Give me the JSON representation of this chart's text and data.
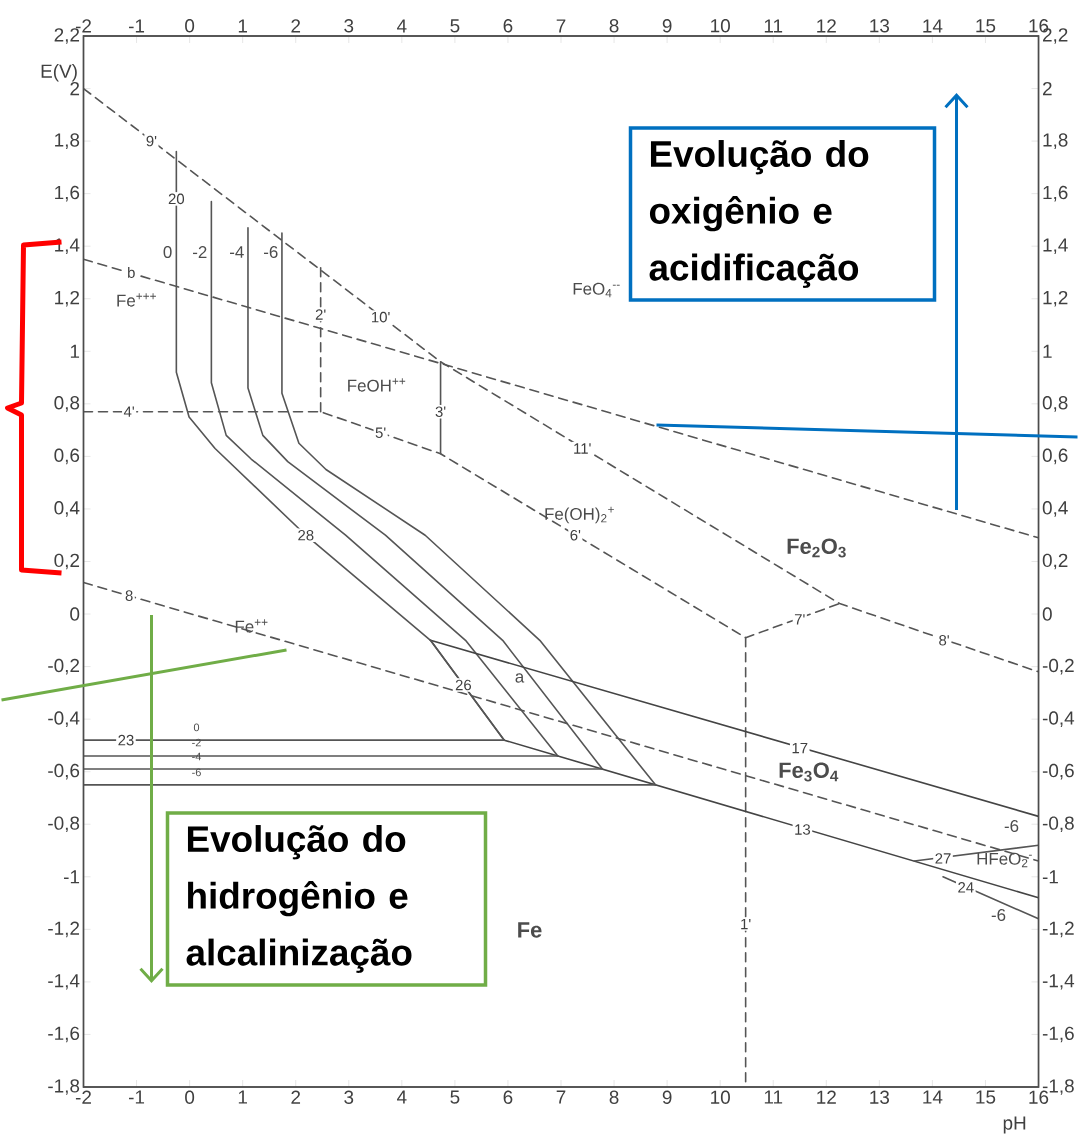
{
  "chart_data": {
    "type": "line",
    "xlabel": "pH",
    "ylabel": "E(V)",
    "xlim": [
      -2,
      16
    ],
    "ylim": [
      -1.8,
      2.2
    ],
    "x2lim": [
      -2,
      16
    ],
    "y2lim": [
      -1.8,
      2.2
    ],
    "xticks": [
      -2,
      -1,
      0,
      1,
      2,
      3,
      4,
      5,
      6,
      7,
      8,
      9,
      10,
      11,
      12,
      13,
      14,
      15,
      16
    ],
    "x2ticks": [
      -2,
      -1,
      0,
      1,
      2,
      3,
      4,
      5,
      6,
      7,
      8,
      9,
      10,
      11,
      12,
      13,
      14,
      15,
      16
    ],
    "yticks": [
      {
        "value": -1.8,
        "label": "-1,8"
      },
      {
        "value": -1.6,
        "label": "-1,6"
      },
      {
        "value": -1.4,
        "label": "-1,4"
      },
      {
        "value": -1.2,
        "label": "-1,2"
      },
      -1,
      {
        "value": -0.8,
        "label": "-0,8"
      },
      {
        "value": -0.6,
        "label": "-0,6"
      },
      {
        "value": -0.4,
        "label": "-0,4"
      },
      {
        "value": -0.2,
        "label": "-0,2"
      },
      0,
      {
        "value": 0.2,
        "label": "0,2"
      },
      {
        "value": 0.4,
        "label": "0,4"
      },
      {
        "value": 0.6,
        "label": "0,6"
      },
      {
        "value": 0.8,
        "label": "0,8"
      },
      1,
      {
        "value": 1.2,
        "label": "1,2"
      },
      {
        "value": 1.4,
        "label": "1,4"
      },
      {
        "value": 1.6,
        "label": "1,6"
      },
      {
        "value": 1.8,
        "label": "1,8"
      },
      2,
      {
        "value": 2.2,
        "label": "2,2"
      }
    ],
    "y2ticks": [
      {
        "value": -1.8,
        "label": "-1,8"
      },
      {
        "value": -1.6,
        "label": "-1,6"
      },
      {
        "value": -1.4,
        "label": "-1,4"
      },
      {
        "value": -1.2,
        "label": "-1,2"
      },
      -1,
      {
        "value": -0.8,
        "label": "-0,8"
      },
      {
        "value": -0.6,
        "label": "-0,6"
      },
      {
        "value": -0.4,
        "label": "-0,4"
      },
      {
        "value": -0.2,
        "label": "-0,2"
      },
      0,
      {
        "value": 0.2,
        "label": "0,2"
      },
      {
        "value": 0.4,
        "label": "0,4"
      },
      {
        "value": 0.6,
        "label": "0,6"
      },
      {
        "value": 0.8,
        "label": "0,8"
      },
      1,
      {
        "value": 1.2,
        "label": "1,2"
      },
      {
        "value": 1.4,
        "label": "1,4"
      },
      {
        "value": 1.6,
        "label": "1,6"
      },
      {
        "value": 1.8,
        "label": "1,8"
      },
      2,
      {
        "value": 2.2,
        "label": "2,2"
      }
    ],
    "series": [
      {
        "color": "#555555",
        "line_style": "dashed",
        "x": [
          -2,
          16
        ],
        "values": [
          1.35,
          0.29
        ]
      },
      {
        "color": "#555555",
        "line_style": "dashed",
        "x": [
          -2,
          16
        ],
        "values": [
          0.12,
          -0.94
        ]
      },
      {
        "color": "#555555",
        "line_style": "dashed",
        "x": [
          -2,
          4.73,
          12.25,
          16
        ],
        "values": [
          2.0,
          0.96,
          0.04,
          -0.22
        ]
      },
      {
        "color": "#555555",
        "line_style": "dashed",
        "x": [
          -2,
          2.47,
          4.73,
          10.48,
          12.25
        ],
        "values": [
          0.77,
          0.77,
          0.61,
          -0.09,
          0.04
        ]
      },
      {
        "color": "#555555",
        "line_style": "dashed",
        "x": [
          10.48,
          10.48
        ],
        "values": [
          -0.09,
          -1.8
        ]
      },
      {
        "color": "#555555",
        "line_style": "dashed",
        "x": [
          2.47,
          2.47
        ],
        "values": [
          0.77,
          1.32
        ]
      },
      {
        "color": "#555555",
        "line_style": "solid",
        "x": [
          4.73,
          4.73
        ],
        "values": [
          0.61,
          0.96
        ]
      },
      {
        "color": "#555555",
        "line_style": "solid",
        "x": [
          -0.25,
          -0.25,
          -0.01,
          0.48,
          2.19,
          4.54,
          5.93
        ],
        "values": [
          1.76,
          0.92,
          0.75,
          0.63,
          0.3,
          -0.1,
          -0.48
        ]
      },
      {
        "color": "#555555",
        "line_style": "solid",
        "x": [
          0.41,
          0.41,
          0.69,
          1.16,
          2.94,
          5.2,
          6.94
        ],
        "values": [
          1.57,
          0.88,
          0.68,
          0.59,
          0.3,
          -0.1,
          -0.54
        ]
      },
      {
        "color": "#555555",
        "line_style": "solid",
        "x": [
          1.1,
          1.1,
          1.38,
          1.85,
          3.69,
          5.9,
          7.78
        ],
        "values": [
          1.47,
          0.86,
          0.68,
          0.58,
          0.3,
          -0.1,
          -0.59
        ]
      },
      {
        "color": "#555555",
        "line_style": "solid",
        "x": [
          1.74,
          1.74,
          2.06,
          2.57,
          4.44,
          6.6,
          8.78
        ],
        "values": [
          1.45,
          0.84,
          0.65,
          0.55,
          0.3,
          -0.1,
          -0.65
        ]
      },
      {
        "color": "#444444",
        "line_style": "solid",
        "x": [
          4.54,
          16
        ],
        "values": [
          -0.1,
          -0.77
        ]
      },
      {
        "color": "#444444",
        "line_style": "solid",
        "x": [
          5.93,
          16
        ],
        "values": [
          -0.48,
          -1.08
        ]
      },
      {
        "color": "#555555",
        "line_style": "solid",
        "x": [
          4.54,
          5.93
        ],
        "values": [
          -0.1,
          -0.48
        ]
      },
      {
        "color": "#555555",
        "line_style": "solid",
        "x": [
          -2,
          5.93
        ],
        "values": [
          -0.48,
          -0.48
        ]
      },
      {
        "color": "#555555",
        "line_style": "solid",
        "x": [
          -2,
          6.94
        ],
        "values": [
          -0.54,
          -0.54
        ]
      },
      {
        "color": "#555555",
        "line_style": "solid",
        "x": [
          -2,
          7.78
        ],
        "values": [
          -0.59,
          -0.59
        ]
      },
      {
        "color": "#555555",
        "line_style": "solid",
        "x": [
          -2,
          8.78
        ],
        "values": [
          -0.65,
          -0.65
        ]
      },
      {
        "color": "#555555",
        "line_style": "solid",
        "x": [
          13.66,
          16
        ],
        "values": [
          -0.94,
          -0.88
        ]
      },
      {
        "color": "#555555",
        "line_style": "solid",
        "x": [
          14.2,
          16
        ],
        "values": [
          -1.0,
          -1.16
        ]
      }
    ],
    "annotations": [
      "Evolução do oxigênio e acidificação",
      "Evolução do hidrogênio e alcalinização",
      "Fe$^{+++}$",
      "0",
      "-2",
      "-4",
      "-6",
      "FeOH$^{++}$",
      "Fe(OH)$_{2}$$^{+}$",
      "Fe$_{2}$O$_{3}$",
      "FeO$_{4}$$^{--}$",
      "Fe$^{++}$",
      "0",
      "-2",
      "-4",
      "-6",
      "Fe$_{3}$O$_{4}$",
      "a",
      "-6",
      "HFeO$_{2}$$^{-}$",
      "-6",
      "Fe",
      {
        "text": "9'",
        "x": -0.72,
        "y": 1.8
      },
      {
        "text": "20",
        "x": -0.25,
        "y": 1.58
      },
      {
        "text": "b",
        "x": -1.1,
        "y": 1.3
      },
      {
        "text": "2'",
        "x": 2.47,
        "y": 1.14
      },
      {
        "text": "10'",
        "x": 3.6,
        "y": 1.13
      },
      {
        "text": "3'",
        "x": 4.73,
        "y": 0.77
      },
      {
        "text": "4'",
        "x": -1.14,
        "y": 0.77
      },
      {
        "text": "5'",
        "x": 3.6,
        "y": 0.69
      },
      {
        "text": "11'",
        "x": 7.4,
        "y": 0.63
      },
      {
        "text": "6'",
        "x": 7.27,
        "y": 0.3
      },
      {
        "text": "28",
        "x": 2.19,
        "y": 0.3
      },
      {
        "text": "8",
        "x": -1.14,
        "y": 0.07
      },
      {
        "text": "7'",
        "x": 11.5,
        "y": -0.02
      },
      {
        "text": "8'",
        "x": 14.22,
        "y": -0.1
      },
      {
        "text": "26",
        "x": 5.16,
        "y": -0.27
      },
      {
        "text": "23",
        "x": -1.2,
        "y": -0.48
      },
      {
        "text": "17",
        "x": 11.5,
        "y": -0.51
      },
      {
        "text": "13",
        "x": 11.55,
        "y": -0.82
      },
      {
        "text": "27",
        "x": 14.2,
        "y": -0.93
      },
      {
        "text": "24",
        "x": 14.63,
        "y": -1.04
      },
      {
        "text": "1'",
        "x": 10.48,
        "y": -1.18
      }
    ]
  }
}
